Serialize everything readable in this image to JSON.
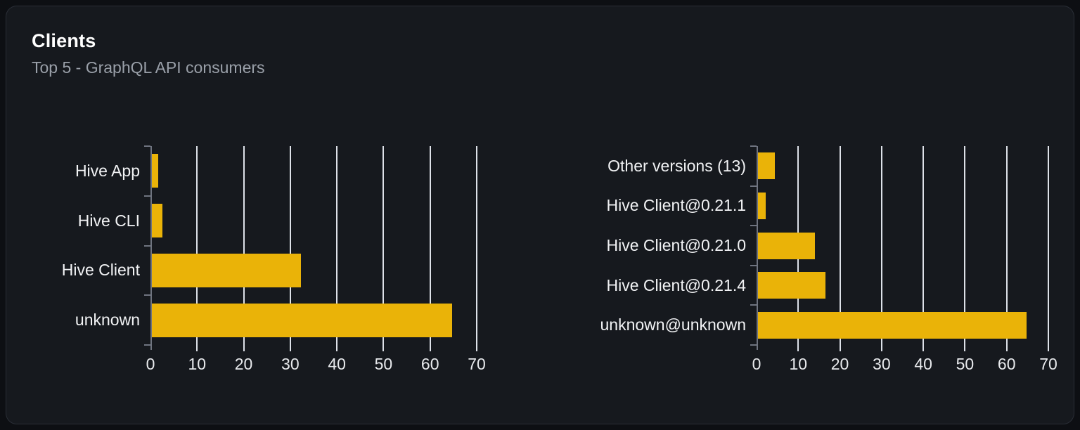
{
  "card": {
    "title": "Clients",
    "subtitle": "Top 5 - GraphQL API consumers"
  },
  "colors": {
    "bar": "#eab308",
    "card_background": "#16191e",
    "page_background": "#0d0f13",
    "gridline": "#dde1e8",
    "axis": "#6f7480",
    "title_text": "#ffffff",
    "subtitle_text": "#9aa0a9",
    "label_text": "#f2f3f5"
  },
  "chart_data": [
    {
      "type": "bar",
      "orientation": "horizontal",
      "name": "clients-by-name",
      "categories": [
        "Hive App",
        "Hive CLI",
        "Hive Client",
        "unknown"
      ],
      "values": [
        1.4,
        2.2,
        32,
        64.4
      ],
      "xlim": [
        0,
        70
      ],
      "xticks": [
        0,
        10,
        20,
        30,
        40,
        50,
        60,
        70
      ],
      "grid": true,
      "legend": false,
      "xlabel": "",
      "ylabel": ""
    },
    {
      "type": "bar",
      "orientation": "horizontal",
      "name": "clients-by-version",
      "categories": [
        "Other versions (13)",
        "Hive Client@0.21.1",
        "Hive Client@0.21.0",
        "Hive Client@0.21.4",
        "unknown@unknown"
      ],
      "values": [
        4,
        1.9,
        13.6,
        16.2,
        64.4
      ],
      "xlim": [
        0,
        70
      ],
      "xticks": [
        0,
        10,
        20,
        30,
        40,
        50,
        60,
        70
      ],
      "grid": true,
      "legend": false,
      "xlabel": "",
      "ylabel": ""
    }
  ]
}
